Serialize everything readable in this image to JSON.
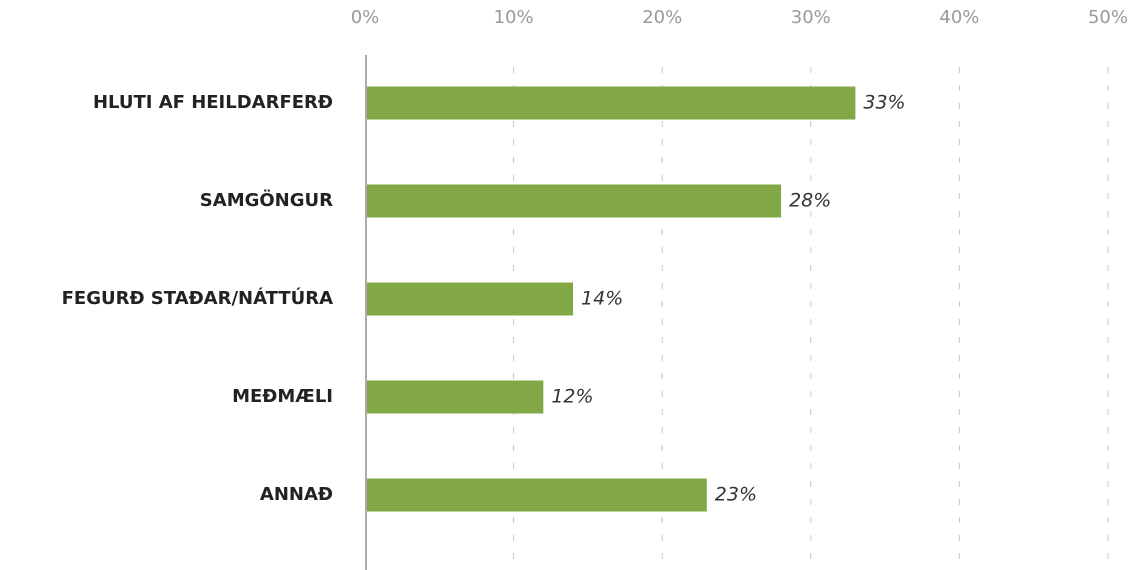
{
  "chart_data": {
    "type": "bar",
    "orientation": "horizontal",
    "categories": [
      "HLUTI AF HEILDARFERÐ",
      "SAMGÖNGUR",
      "FEGURÐ STAÐAR/NÁTTÚRA",
      "MEÐMÆLI",
      "ANNAÐ"
    ],
    "values": [
      33,
      28,
      14,
      12,
      23
    ],
    "value_labels": [
      "33%",
      "28%",
      "14%",
      "12%",
      "23%"
    ],
    "color": "#82a745",
    "xlim": [
      0,
      50
    ],
    "xticks": [
      {
        "value": 0,
        "label": "0%"
      },
      {
        "value": 10,
        "label": "10%"
      },
      {
        "value": 20,
        "label": "20%"
      },
      {
        "value": 30,
        "label": "30%"
      },
      {
        "value": 40,
        "label": "40%"
      },
      {
        "value": 50,
        "label": "50%"
      }
    ],
    "grid": true
  }
}
